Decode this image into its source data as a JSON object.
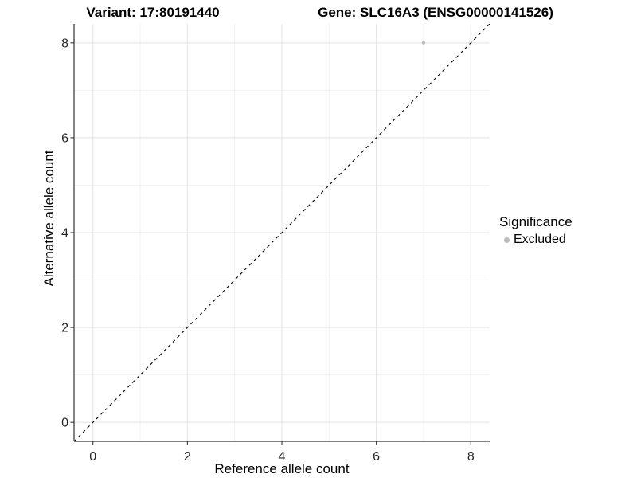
{
  "figure": {
    "title_left": "Variant: 17:80191440",
    "title_right": "Gene: SLC16A3 (ENSG00000141526)"
  },
  "chart_data": {
    "type": "scatter",
    "title": "Variant: 17:80191440 — Gene: SLC16A3 (ENSG00000141526)",
    "xlabel": "Reference allele count",
    "ylabel": "Alternative allele count",
    "xlim": [
      -0.4,
      8.4
    ],
    "ylim": [
      -0.4,
      8.4
    ],
    "x_ticks": [
      0,
      2,
      4,
      6,
      8
    ],
    "y_ticks": [
      0,
      2,
      4,
      6,
      8
    ],
    "x_minor_ticks": [
      1,
      3,
      5,
      7
    ],
    "y_minor_ticks": [
      1,
      3,
      5,
      7
    ],
    "grid": true,
    "series": [
      {
        "name": "Excluded",
        "color": "#bdbdbd",
        "point_radius": 2.1,
        "points": [
          [
            7,
            8
          ]
        ]
      }
    ],
    "reference_line": {
      "type": "identity",
      "from": [
        -0.5,
        -0.5
      ],
      "to": [
        8.5,
        8.5
      ],
      "linetype": "dashed",
      "color": "#000000"
    },
    "legend": {
      "title": "Significance",
      "position": "right",
      "entries": [
        {
          "label": "Excluded",
          "color": "#bdbdbd"
        }
      ]
    },
    "colors": {
      "grid_major": "#e3e3e3",
      "grid_minor": "#f1f1f1",
      "axis_line": "#333333",
      "tick_mark": "#333333",
      "point": "#bdbdbd"
    }
  }
}
